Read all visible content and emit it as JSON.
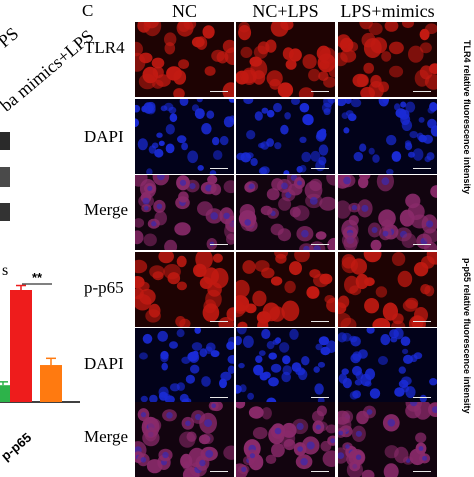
{
  "panel_letter": "C",
  "columns": [
    "NC",
    "NC+LPS",
    "LPS+mimics"
  ],
  "rows": [
    "TLR4",
    "DAPI",
    "Merge",
    "p-p65",
    "DAPI",
    "Merge"
  ],
  "left_fragment": {
    "top_label_1": "PS",
    "top_label_2": "ba mimics+LPS",
    "fragment_s": "s",
    "significance": "**",
    "xtick": "p-p65"
  },
  "side_axis_labels": [
    "TLR4 relative fluorescence intensity",
    "p-p65 relative fluorescence intensity"
  ],
  "colors": {
    "red_channel": "#c21a12",
    "blue_channel": "#1a2bd6",
    "merge_channel": "#8a2a6a",
    "bar_red": "#ee1c1c",
    "bar_orange": "#ff7a10",
    "bar_green": "#2db34a"
  },
  "chart_data": {
    "type": "bar",
    "categories": [
      "p-p65"
    ],
    "series": [
      {
        "color": "#2db34a",
        "values": [
          0.15
        ]
      },
      {
        "color": "#ee1c1c",
        "values": [
          1.0
        ]
      },
      {
        "color": "#ff7a10",
        "values": [
          0.33
        ]
      }
    ],
    "error": [
      0.03,
      0.04,
      0.06
    ],
    "annotations": [
      "**"
    ]
  }
}
